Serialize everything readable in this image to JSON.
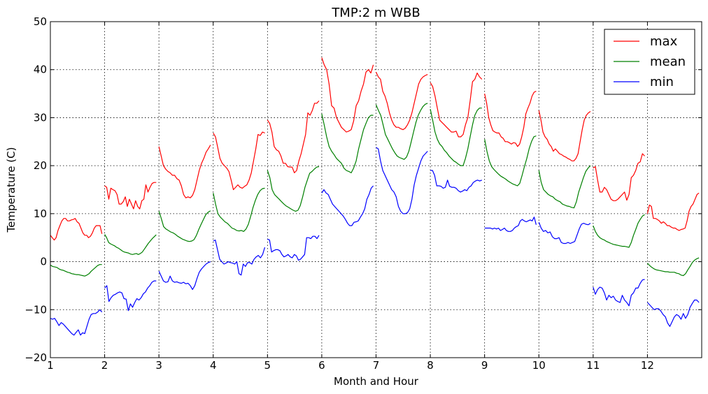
{
  "chart_data": {
    "type": "line",
    "title": "TMP:2 m WBB",
    "xlabel": "Month and Hour",
    "ylabel": "Temperature (C)",
    "xlim": [
      1,
      13
    ],
    "ylim": [
      -20,
      50
    ],
    "xticks": [
      1,
      2,
      3,
      4,
      5,
      6,
      7,
      8,
      9,
      10,
      11,
      12
    ],
    "yticks": [
      -20,
      -10,
      0,
      10,
      20,
      30,
      40,
      50
    ],
    "ytick_labels": [
      "−20",
      "−10",
      "0",
      "10",
      "20",
      "30",
      "40",
      "50"
    ],
    "grid": true,
    "legend_position": "top-right",
    "series": [
      {
        "name": "max",
        "color": "#ff0000",
        "months": [
          [
            5.5,
            5.0,
            4.5,
            5.0,
            6.5,
            7.5,
            8.5,
            9.0,
            9.0,
            8.5,
            8.5,
            8.7,
            8.8,
            9.0,
            8.3,
            8.0,
            7.0,
            6.0,
            5.5,
            5.5,
            5.0,
            5.3,
            6.0,
            7.0,
            7.5,
            7.5,
            7.5,
            5.8
          ],
          [
            15.8,
            15.5,
            13.0,
            15.3,
            15.0,
            14.8,
            14.0,
            12.0,
            12.0,
            12.5,
            13.5,
            11.5,
            13.0,
            12.0,
            11.0,
            12.7,
            11.5,
            11.0,
            12.7,
            13.0,
            16.0,
            14.5,
            15.5,
            16.3,
            16.5,
            16.5
          ],
          [
            24.0,
            22.0,
            20.0,
            19.3,
            18.8,
            18.5,
            18.0,
            18.0,
            17.3,
            17.0,
            15.8,
            14.0,
            13.3,
            13.5,
            13.3,
            13.8,
            15.0,
            17.0,
            19.0,
            20.5,
            21.5,
            22.8,
            23.5,
            24.3
          ],
          [
            26.8,
            26.0,
            23.8,
            21.5,
            20.5,
            20.0,
            19.5,
            18.8,
            17.0,
            15.0,
            15.5,
            16.0,
            15.5,
            15.3,
            15.7,
            16.0,
            17.0,
            18.5,
            21.0,
            23.5,
            26.5,
            26.3,
            27.0,
            26.8
          ],
          [
            29.5,
            28.8,
            27.0,
            24.0,
            23.3,
            23.0,
            22.0,
            20.5,
            20.5,
            19.8,
            19.7,
            19.7,
            18.5,
            19.0,
            21.0,
            22.5,
            24.5,
            26.5,
            31.0,
            30.5,
            31.5,
            33.0,
            33.0,
            33.5
          ],
          [
            42.5,
            41.0,
            40.0,
            37.0,
            32.5,
            32.0,
            30.0,
            29.0,
            28.0,
            27.5,
            27.0,
            27.2,
            27.5,
            29.3,
            32.5,
            33.5,
            35.5,
            37.0,
            39.5,
            40.0,
            39.3,
            41.0
          ],
          [
            39.5,
            38.5,
            38.0,
            35.5,
            34.5,
            33.0,
            31.0,
            29.5,
            28.5,
            28.0,
            28.0,
            27.7,
            27.5,
            27.8,
            28.5,
            29.5,
            31.0,
            33.0,
            35.0,
            37.0,
            38.0,
            38.5,
            38.8,
            39.0
          ],
          [
            37.3,
            36.5,
            34.5,
            32.0,
            29.5,
            29.0,
            28.5,
            28.0,
            27.5,
            27.0,
            27.0,
            27.2,
            26.0,
            26.0,
            26.5,
            28.5,
            30.0,
            33.5,
            37.5,
            38.0,
            39.3,
            38.5,
            38.0
          ],
          [
            35.0,
            33.0,
            30.0,
            28.5,
            27.3,
            27.0,
            26.8,
            26.8,
            26.0,
            25.7,
            25.0,
            25.0,
            24.8,
            24.5,
            24.8,
            24.7,
            24.0,
            24.5,
            26.0,
            28.0,
            30.8,
            32.0,
            33.0,
            34.5,
            35.3,
            35.5
          ],
          [
            31.5,
            29.5,
            27.0,
            26.0,
            25.5,
            24.5,
            24.0,
            23.0,
            23.5,
            23.0,
            22.5,
            22.3,
            22.0,
            21.8,
            21.5,
            21.3,
            21.0,
            21.0,
            21.5,
            22.5,
            25.0,
            27.5,
            29.5,
            30.5,
            31.0,
            31.3
          ],
          [
            19.5,
            19.8,
            17.0,
            14.5,
            14.5,
            15.5,
            15.0,
            14.0,
            13.0,
            12.7,
            12.7,
            13.0,
            13.5,
            14.0,
            14.5,
            12.8,
            14.0,
            17.5,
            18.0,
            19.0,
            20.5,
            20.8,
            22.5,
            22.0
          ],
          [
            10.0,
            11.8,
            11.5,
            9.0,
            9.0,
            8.8,
            8.5,
            8.0,
            8.3,
            8.0,
            7.5,
            7.5,
            7.2,
            7.0,
            7.0,
            6.7,
            6.5,
            6.7,
            6.8,
            7.0,
            8.5,
            10.5,
            11.5,
            12.0,
            13.0,
            14.0,
            14.3
          ]
        ]
      },
      {
        "name": "mean",
        "color": "#008000",
        "months": [
          [
            -0.7,
            -1.0,
            -1.1,
            -1.2,
            -1.5,
            -1.7,
            -1.8,
            -2.0,
            -2.2,
            -2.3,
            -2.5,
            -2.6,
            -2.7,
            -2.7,
            -2.8,
            -2.9,
            -3.0,
            -2.8,
            -2.5,
            -2.0,
            -1.6,
            -1.2,
            -0.8,
            -0.6,
            -0.6
          ],
          [
            5.7,
            5.0,
            4.0,
            3.7,
            3.5,
            3.3,
            3.0,
            2.8,
            2.5,
            2.2,
            2.0,
            1.9,
            1.8,
            1.6,
            1.5,
            1.6,
            1.7,
            1.5,
            1.7,
            2.0,
            2.6,
            3.2,
            3.8,
            4.3,
            4.8,
            5.2,
            5.6
          ],
          [
            10.5,
            9.0,
            7.3,
            6.8,
            6.5,
            6.2,
            6.0,
            5.7,
            5.3,
            5.0,
            4.7,
            4.5,
            4.3,
            4.2,
            4.3,
            4.6,
            5.5,
            6.7,
            7.8,
            8.8,
            9.8,
            10.3,
            10.6
          ],
          [
            14.3,
            12.0,
            10.0,
            9.3,
            8.8,
            8.3,
            8.0,
            7.5,
            7.0,
            6.8,
            6.5,
            6.4,
            6.5,
            6.3,
            6.8,
            7.8,
            9.5,
            11.3,
            12.8,
            14.0,
            14.8,
            15.2,
            15.3
          ],
          [
            19.0,
            17.5,
            15.0,
            14.0,
            13.5,
            13.0,
            12.5,
            12.0,
            11.6,
            11.3,
            11.0,
            10.7,
            10.5,
            10.7,
            11.7,
            13.5,
            15.5,
            17.0,
            18.4,
            18.8,
            19.3,
            19.7,
            19.8
          ],
          [
            30.8,
            28.5,
            26.0,
            24.0,
            23.0,
            22.3,
            21.5,
            21.0,
            20.5,
            19.5,
            19.0,
            18.8,
            18.5,
            19.5,
            21.0,
            23.5,
            25.5,
            27.5,
            28.8,
            30.0,
            30.5,
            30.5
          ],
          [
            32.7,
            31.5,
            30.5,
            28.5,
            26.5,
            25.5,
            24.5,
            23.5,
            22.7,
            22.0,
            21.7,
            21.5,
            21.3,
            21.8,
            23.0,
            25.0,
            27.0,
            29.0,
            30.5,
            31.5,
            32.3,
            32.8,
            33.0
          ],
          [
            31.8,
            29.5,
            27.0,
            25.5,
            24.5,
            24.0,
            23.2,
            22.7,
            22.0,
            21.5,
            21.0,
            20.7,
            20.3,
            20.0,
            20.0,
            21.5,
            23.5,
            26.0,
            28.5,
            30.5,
            31.5,
            32.0,
            32.0
          ],
          [
            25.5,
            23.0,
            21.0,
            19.8,
            19.2,
            18.7,
            18.2,
            17.8,
            17.5,
            17.2,
            16.8,
            16.5,
            16.2,
            16.0,
            15.8,
            16.3,
            18.0,
            19.8,
            21.5,
            23.5,
            25.0,
            26.0,
            26.2
          ],
          [
            19.0,
            16.5,
            15.0,
            14.5,
            14.0,
            13.7,
            13.5,
            13.0,
            12.7,
            12.5,
            12.0,
            11.8,
            11.6,
            11.5,
            11.3,
            11.2,
            12.5,
            14.5,
            16.0,
            17.5,
            18.8,
            19.5,
            20.0
          ],
          [
            7.5,
            6.3,
            5.5,
            5.0,
            4.7,
            4.5,
            4.2,
            4.0,
            3.8,
            3.6,
            3.5,
            3.4,
            3.3,
            3.2,
            3.2,
            3.1,
            3.0,
            4.0,
            5.5,
            6.7,
            8.0,
            8.8,
            9.5,
            9.8
          ],
          [
            -0.3,
            -0.8,
            -1.2,
            -1.5,
            -1.7,
            -1.8,
            -1.9,
            -2.0,
            -2.1,
            -2.1,
            -2.2,
            -2.2,
            -2.2,
            -2.4,
            -2.5,
            -2.8,
            -2.9,
            -2.5,
            -1.7,
            -1.0,
            -0.2,
            0.3,
            0.6,
            0.8
          ]
        ]
      },
      {
        "name": "min",
        "color": "#0000ff",
        "months": [
          [
            -11.8,
            -12.0,
            -11.8,
            -12.5,
            -13.3,
            -12.7,
            -13.0,
            -13.5,
            -14.0,
            -14.5,
            -15.0,
            -15.3,
            -14.7,
            -14.2,
            -15.3,
            -14.8,
            -15.0,
            -13.5,
            -12.0,
            -11.0,
            -10.8,
            -10.8,
            -10.5,
            -10.0,
            -10.5
          ],
          [
            -5.5,
            -5.0,
            -8.3,
            -7.5,
            -7.0,
            -6.8,
            -6.5,
            -6.3,
            -6.5,
            -7.7,
            -7.8,
            -10.2,
            -8.8,
            -9.5,
            -8.5,
            -7.7,
            -8.0,
            -7.5,
            -6.7,
            -6.3,
            -5.5,
            -5.0,
            -4.3,
            -4.0,
            -4.0
          ],
          [
            -2.0,
            -3.0,
            -4.0,
            -4.3,
            -4.2,
            -3.0,
            -4.0,
            -4.3,
            -4.2,
            -4.4,
            -4.5,
            -4.3,
            -4.6,
            -4.5,
            -5.0,
            -5.8,
            -5.0,
            -3.5,
            -2.2,
            -1.5,
            -1.0,
            -0.5,
            -0.2,
            0.0
          ],
          [
            4.3,
            4.5,
            2.5,
            0.5,
            0.0,
            -0.5,
            -0.3,
            0.0,
            -0.2,
            -0.3,
            -0.5,
            0.0,
            -2.5,
            -2.8,
            -0.5,
            -1.0,
            -0.2,
            -0.2,
            -0.5,
            0.5,
            1.0,
            1.3,
            0.8,
            1.5,
            3.0
          ],
          [
            4.7,
            4.5,
            2.0,
            2.3,
            2.5,
            2.5,
            2.3,
            1.5,
            1.0,
            1.2,
            1.5,
            1.0,
            0.8,
            1.5,
            1.2,
            0.3,
            0.5,
            1.0,
            1.5,
            5.0,
            5.0,
            4.8,
            5.3,
            5.3,
            4.8,
            5.5
          ],
          [
            14.3,
            15.0,
            14.3,
            14.0,
            13.0,
            12.0,
            11.5,
            11.0,
            10.5,
            10.0,
            9.5,
            8.8,
            8.0,
            7.5,
            7.5,
            8.2,
            8.3,
            8.5,
            9.3,
            10.0,
            11.0,
            13.0,
            14.0,
            15.3,
            15.8
          ],
          [
            23.8,
            23.5,
            21.0,
            19.0,
            18.0,
            17.0,
            16.0,
            15.0,
            14.5,
            13.5,
            11.5,
            10.5,
            10.0,
            10.0,
            10.2,
            11.0,
            13.0,
            16.0,
            18.0,
            19.5,
            21.0,
            22.0,
            22.5,
            23.0
          ],
          [
            19.0,
            19.0,
            18.0,
            15.8,
            15.8,
            15.7,
            15.3,
            15.5,
            17.0,
            15.7,
            15.5,
            15.5,
            15.3,
            14.8,
            14.5,
            14.7,
            15.0,
            14.8,
            15.5,
            15.8,
            16.5,
            16.8,
            17.0,
            16.8,
            17.0
          ],
          [
            7.0,
            7.0,
            7.0,
            7.0,
            6.8,
            7.0,
            6.8,
            7.0,
            6.5,
            6.7,
            7.0,
            6.5,
            6.3,
            6.3,
            6.5,
            7.0,
            7.3,
            7.5,
            8.5,
            8.8,
            8.5,
            8.3,
            8.5,
            8.7,
            8.5,
            9.3,
            7.7
          ],
          [
            8.2,
            7.0,
            6.3,
            6.5,
            6.0,
            6.2,
            5.2,
            4.8,
            4.8,
            5.0,
            4.0,
            3.8,
            3.8,
            4.0,
            3.8,
            4.0,
            4.2,
            5.5,
            6.8,
            7.8,
            8.0,
            7.8,
            7.7,
            8.0
          ],
          [
            -5.3,
            -6.8,
            -5.8,
            -5.3,
            -5.5,
            -6.5,
            -8.0,
            -7.0,
            -7.5,
            -7.2,
            -8.0,
            -8.3,
            -8.5,
            -7.0,
            -8.0,
            -8.5,
            -9.2,
            -7.0,
            -6.5,
            -5.5,
            -5.5,
            -4.5,
            -3.8,
            -3.7
          ],
          [
            -8.5,
            -9.0,
            -9.5,
            -10.0,
            -9.8,
            -9.8,
            -10.3,
            -11.0,
            -11.5,
            -12.8,
            -13.5,
            -12.5,
            -11.5,
            -11.0,
            -11.3,
            -12.0,
            -10.8,
            -11.8,
            -11.0,
            -9.5,
            -8.7,
            -8.0,
            -8.0,
            -8.5
          ]
        ]
      }
    ]
  }
}
